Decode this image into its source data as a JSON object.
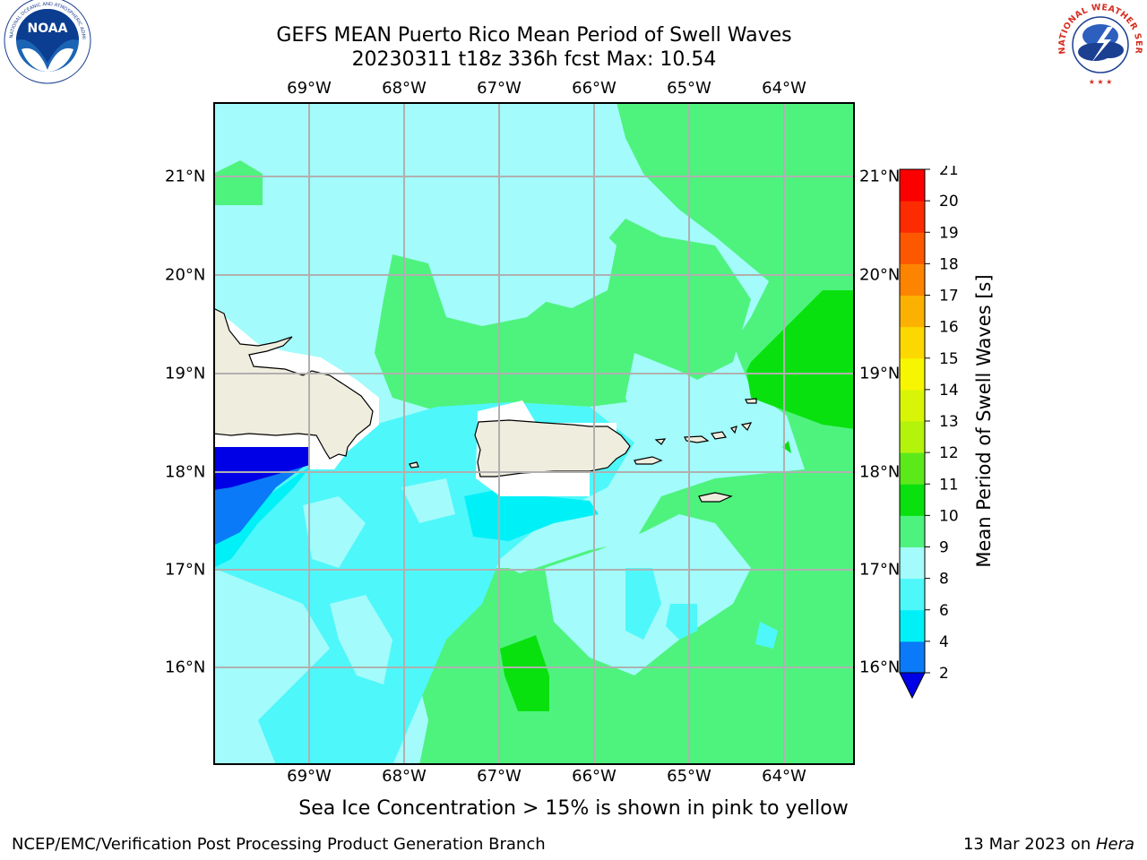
{
  "title": {
    "line1": "GEFS MEAN Puerto Rico Mean Period of Swell Waves",
    "line2": "20230311 t18z 336h fcst   Max: 10.54"
  },
  "axes": {
    "lon_ticks": [
      "69°W",
      "68°W",
      "67°W",
      "66°W",
      "65°W",
      "64°W"
    ],
    "lat_ticks": [
      "21°N",
      "20°N",
      "19°N",
      "18°N",
      "17°N",
      "16°N"
    ],
    "lon_range": [
      -70.0,
      -63.25
    ],
    "lat_range": [
      15.0,
      21.75
    ],
    "grid": true
  },
  "colorbar": {
    "label": "Mean Period of Swell Waves [s]",
    "ticks": [
      "2",
      "4",
      "6",
      "8",
      "9",
      "10",
      "11",
      "12",
      "13",
      "14",
      "15",
      "16",
      "17",
      "18",
      "19",
      "20",
      "21"
    ],
    "colors": [
      "#0000e6",
      "#0a7af8",
      "#00f0f8",
      "#4ef7fa",
      "#a3fbfb",
      "#4ef37e",
      "#09e10f",
      "#5ce91a",
      "#b4f30b",
      "#d9f507",
      "#f8f500",
      "#fdd700",
      "#fcb100",
      "#fc8400",
      "#fd5800",
      "#fd2b00",
      "#fc0000"
    ],
    "extend_color": "#0000e6"
  },
  "fields": {
    "max_value": 10.54,
    "land_color": "#efedde",
    "mask_color": "#ffffff"
  },
  "footer": {
    "ice_note": "Sea Ice Concentration > 15% is shown in pink to yellow",
    "credit": "NCEP/EMC/Verification Post Processing Product Generation Branch",
    "date": "13 Mar 2023 on ",
    "host": "Hera"
  },
  "logos": {
    "noaa": "NOAA",
    "nws": "NATIONAL WEATHER SERVICE"
  }
}
